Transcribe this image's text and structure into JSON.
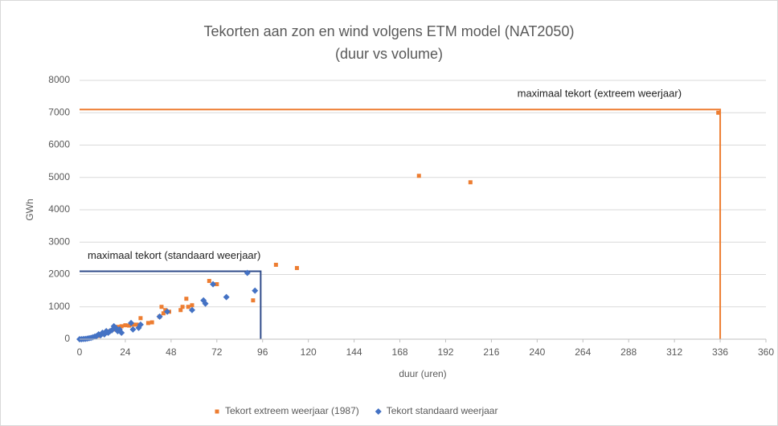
{
  "chart_data": {
    "type": "scatter",
    "title": "Tekorten aan zon en wind volgens ETM model (NAT2050)",
    "subtitle": "(duur vs volume)",
    "x_label": "duur (uren)",
    "y_label": "GWh",
    "xlim": [
      0,
      360
    ],
    "ylim": [
      0,
      8000
    ],
    "xticks": [
      0,
      24,
      48,
      72,
      96,
      120,
      144,
      168,
      192,
      216,
      240,
      264,
      288,
      312,
      336,
      360
    ],
    "yticks": [
      0,
      1000,
      2000,
      3000,
      4000,
      5000,
      6000,
      7000,
      8000
    ],
    "grid": true,
    "legend": "bottom",
    "reference_lines": [
      {
        "label": "maximaal tekort (extreem weerjaar)",
        "x": 336,
        "y": 7100,
        "color": "#ed7d31"
      },
      {
        "label": "maximaal tekort (standaard weerjaar)",
        "x": 95,
        "y": 2100,
        "color": "#2f4b8a"
      }
    ],
    "series": [
      {
        "name": "Tekort extreem weerjaar (1987)",
        "color": "#ed7d31",
        "marker": "square",
        "x": [
          335,
          178,
          205,
          103,
          114,
          91,
          68,
          72,
          56,
          54,
          57,
          59,
          53,
          45,
          43,
          44,
          47,
          42,
          36,
          38,
          32,
          30,
          28,
          26,
          24,
          22,
          20,
          18,
          16,
          14,
          12,
          10,
          8,
          5,
          3,
          1
        ],
        "values": [
          7000,
          5050,
          4850,
          2300,
          2200,
          1200,
          1800,
          1700,
          1250,
          1000,
          1000,
          1050,
          900,
          900,
          1000,
          800,
          850,
          700,
          500,
          520,
          650,
          450,
          450,
          420,
          430,
          400,
          380,
          300,
          250,
          200,
          150,
          100,
          60,
          30,
          10,
          0
        ]
      },
      {
        "name": "Tekort standaard weerjaar",
        "color": "#4472c4",
        "marker": "diamond",
        "x": [
          88,
          92,
          77,
          70,
          65,
          66,
          59,
          46,
          42,
          32,
          31,
          28,
          27,
          22,
          21,
          20,
          19,
          18,
          17,
          16,
          15,
          14,
          13,
          12,
          11,
          10,
          9,
          8,
          7,
          6,
          5,
          4,
          3,
          2,
          1,
          0
        ],
        "values": [
          2050,
          1500,
          1300,
          1700,
          1200,
          1100,
          900,
          850,
          700,
          450,
          350,
          300,
          500,
          200,
          300,
          250,
          350,
          400,
          280,
          250,
          200,
          250,
          150,
          200,
          120,
          150,
          100,
          80,
          60,
          40,
          30,
          20,
          10,
          5,
          0,
          0
        ]
      }
    ]
  }
}
